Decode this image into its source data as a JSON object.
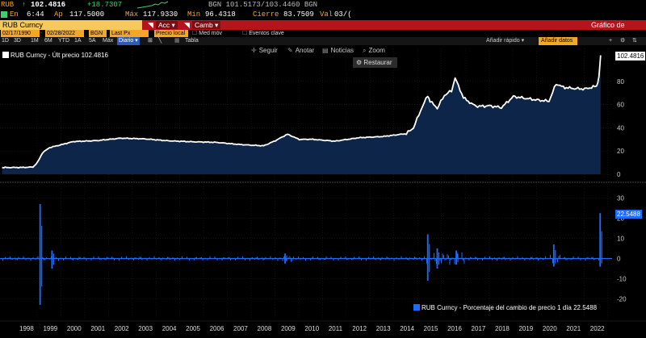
{
  "ticker": {
    "symbol": "RUB",
    "arrow": "↑",
    "last": "102.4816",
    "change": "+18.7307",
    "quote": "BGN 101.5173/103.4460 BGN",
    "at_label": "En",
    "time": "6:44",
    "open_label": "Ap",
    "open": "117.5000",
    "high_label": "Máx",
    "high": "117.9330",
    "low_label": "Mín",
    "low": "96.4318",
    "close_label": "Cierre",
    "close": "83.7509",
    "vol_label": "Val",
    "vol": "03/("
  },
  "header": {
    "security": "RUB Curncy",
    "actions": "Acc",
    "edit": "Camb",
    "title": "Gráfico de líneas"
  },
  "params": {
    "start_date": "02/17/1990",
    "end_date": "02/28/2022",
    "ccy": "BGN",
    "field": "Last Px",
    "bench": "Precio local",
    "avg": "Med móv",
    "events": "Eventos clave"
  },
  "periods": [
    "1D",
    "3D",
    "1M",
    "6M",
    "YTD",
    "1A",
    "5A",
    "Máx",
    "Diario",
    "Tabla"
  ],
  "quick_add": "Añadir rápido",
  "add_data": "Añadir datos",
  "toolbar": {
    "follow": "Seguir",
    "annotate": "Anotar",
    "news": "Noticias",
    "zoom": "Zoom",
    "restore": "Restaurar"
  },
  "legend_top": {
    "label": "RUB Curncy - Últ precio",
    "value": "102.4816"
  },
  "legend_bottom": {
    "label": "RUB Curncy - Porcentaje del cambio de precio 1 día",
    "value": "22.5488"
  },
  "chart_data": [
    {
      "type": "area",
      "series": [
        {
          "name": "RUB Curncy - Últ precio",
          "color": "#ffffff",
          "fill": "#0c2548"
        }
      ],
      "x": [
        1997.0,
        1997.9,
        1998.3,
        1998.5,
        1998.7,
        1999.0,
        1999.5,
        2000.0,
        2001.0,
        2002.0,
        2003.0,
        2004.0,
        2005.0,
        2006.0,
        2007.0,
        2008.0,
        2008.5,
        2009.0,
        2009.5,
        2010.0,
        2011.0,
        2011.5,
        2012.0,
        2013.0,
        2014.0,
        2014.3,
        2014.6,
        2014.9,
        2015.0,
        2015.3,
        2015.6,
        2015.9,
        2016.05,
        2016.4,
        2016.8,
        2017.0,
        2017.5,
        2018.0,
        2018.5,
        2019.0,
        2019.5,
        2020.0,
        2020.3,
        2020.6,
        2021.0,
        2021.5,
        2022.0,
        2022.1,
        2022.17
      ],
      "values": [
        5.8,
        5.9,
        6.2,
        10.5,
        18.5,
        23.0,
        25.5,
        28.2,
        29.0,
        31.1,
        30.5,
        28.8,
        28.0,
        27.5,
        25.6,
        24.5,
        29.0,
        34.5,
        30.0,
        30.2,
        28.5,
        30.0,
        31.5,
        32.5,
        35.0,
        40.0,
        55.0,
        68.0,
        63.0,
        57.0,
        68.0,
        72.0,
        83.0,
        66.0,
        60.0,
        58.5,
        59.0,
        57.5,
        67.0,
        65.5,
        64.0,
        63.0,
        78.0,
        75.0,
        74.0,
        73.5,
        76.0,
        84.0,
        102.5
      ],
      "last_value": "102.4816",
      "ylim": [
        0,
        105
      ],
      "yticks": [
        0,
        20,
        40,
        60,
        80
      ]
    },
    {
      "type": "line",
      "series": [
        {
          "name": "RUB Curncy - Porcentaje del cambio de precio 1 día",
          "color": "#1e6bff"
        }
      ],
      "spikes": [
        {
          "x": 1998.6,
          "values": [
            27,
            -23
          ]
        },
        {
          "x": 1999.1,
          "values": [
            4,
            -5
          ]
        },
        {
          "x": 2008.9,
          "values": [
            2.5,
            -2.5
          ]
        },
        {
          "x": 2014.9,
          "values": [
            12,
            -11
          ]
        },
        {
          "x": 2015.3,
          "values": [
            5,
            -5
          ]
        },
        {
          "x": 2016.1,
          "values": [
            4,
            -3
          ]
        },
        {
          "x": 2020.2,
          "values": [
            7,
            -4
          ]
        },
        {
          "x": 2022.15,
          "values": [
            22.5,
            -4
          ]
        }
      ],
      "last_value": "22.5488",
      "ylim": [
        -25,
        35
      ],
      "yticks": [
        -20,
        -10,
        0,
        10,
        20,
        30
      ]
    }
  ],
  "x_labels": [
    "1998",
    "1999",
    "2000",
    "2001",
    "2002",
    "2003",
    "2004",
    "2005",
    "2006",
    "2007",
    "2008",
    "2009",
    "2010",
    "2011",
    "2012",
    "2013",
    "2014",
    "2015",
    "2016",
    "2017",
    "2018",
    "2019",
    "2020",
    "2021",
    "2022"
  ]
}
